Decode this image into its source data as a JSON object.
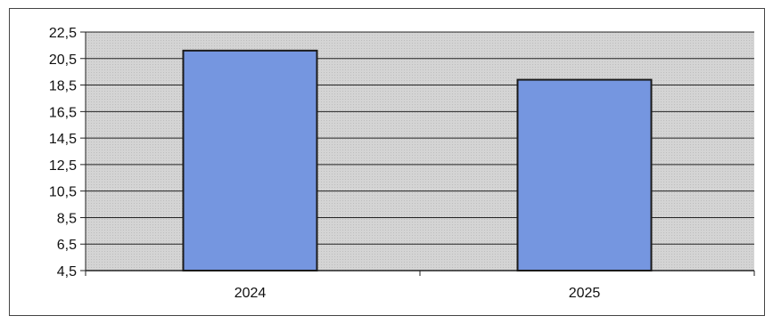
{
  "chart_data": {
    "type": "bar",
    "categories": [
      "2024",
      "2025"
    ],
    "values": [
      21.1,
      18.9
    ],
    "title": "",
    "xlabel": "",
    "ylabel": "",
    "ylim": [
      4.5,
      22.5
    ],
    "yticks": [
      "4,5",
      "6,5",
      "8,5",
      "10,5",
      "12,5",
      "14,5",
      "16,5",
      "18,5",
      "20,5",
      "22,5"
    ],
    "ytick_values": [
      4.5,
      6.5,
      8.5,
      10.5,
      12.5,
      14.5,
      16.5,
      18.5,
      20.5,
      22.5
    ],
    "grid": true,
    "legend": "none",
    "colors": {
      "bar": "#7596e0",
      "plot_background": "#d2d2d2",
      "gridline": "#222222"
    }
  }
}
